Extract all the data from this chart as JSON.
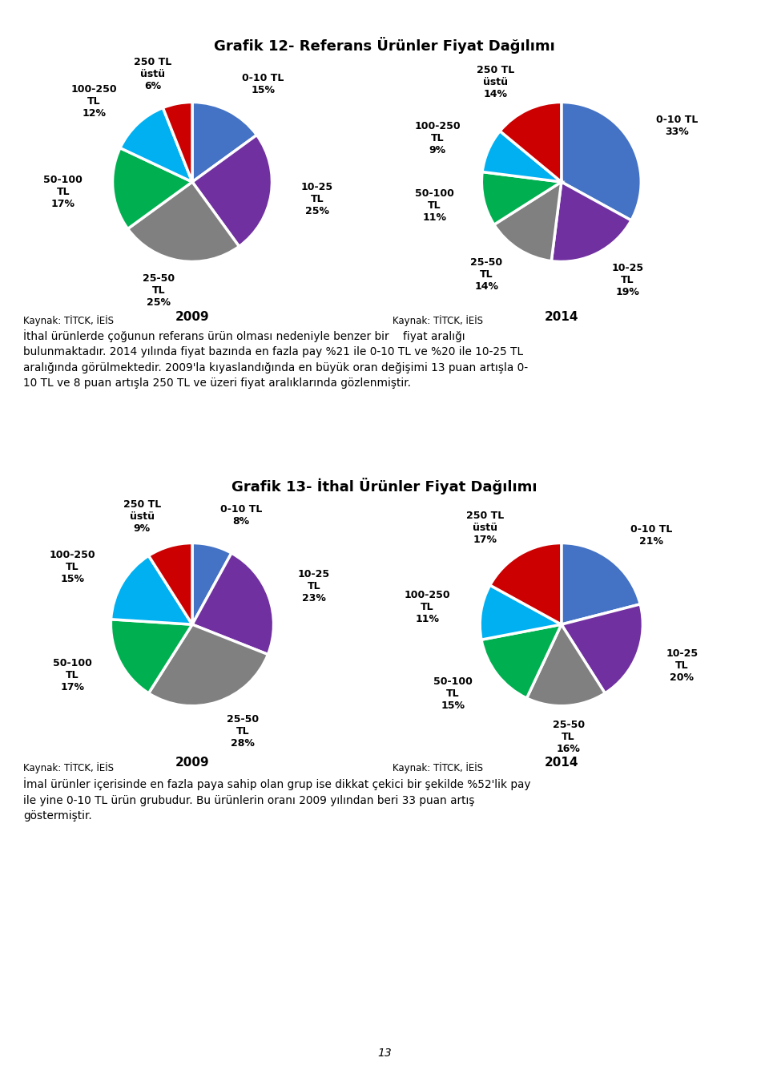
{
  "title1": "Grafik 12- Referans Ürünler Fiyat Dağılımı",
  "title2": "Grafik 13- İthal Ürünler Fiyat Dağılımı",
  "pie_colors": {
    "0-10 TL": "#4472c4",
    "10-25 TL": "#7030a0",
    "25-50 TL": "#808080",
    "50-100 TL": "#00b050",
    "100-250 TL": "#00b0f0",
    "250 TL ustu": "#cc0000"
  },
  "referans_2009": {
    "labels": [
      "0-10 TL",
      "10-25 TL",
      "25-50 TL",
      "50-100 TL",
      "100-250 TL",
      "250 TL ustu"
    ],
    "values": [
      15,
      25,
      25,
      17,
      12,
      6
    ],
    "label_texts": [
      "0-10 TL\n15%",
      "10-25\nTL\n25%",
      "25-50\nTL\n25%",
      "50-100\nTL\n17%",
      "100-250\nTL\n12%",
      "250 TL\nüstü\n6%"
    ],
    "year": "2009",
    "source": "Kaynak: TİTCK, İEİS"
  },
  "referans_2014": {
    "labels": [
      "0-10 TL",
      "10-25 TL",
      "25-50 TL",
      "50-100 TL",
      "100-250 TL",
      "250 TL ustu"
    ],
    "values": [
      33,
      19,
      14,
      11,
      9,
      14
    ],
    "label_texts": [
      "0-10 TL\n33%",
      "10-25\nTL\n19%",
      "25-50\nTL\n14%",
      "50-100\nTL\n11%",
      "100-250\nTL\n9%",
      "250 TL\nüstü\n14%"
    ],
    "year": "2014",
    "source": "Kaynak: TİTCK, İEİS"
  },
  "ithal_2009": {
    "labels": [
      "0-10 TL",
      "10-25 TL",
      "25-50 TL",
      "50-100 TL",
      "100-250 TL",
      "250 TL ustu"
    ],
    "values": [
      8,
      23,
      28,
      17,
      15,
      9
    ],
    "label_texts": [
      "0-10 TL\n8%",
      "10-25\nTL\n23%",
      "25-50\nTL\n28%",
      "50-100\nTL\n17%",
      "100-250\nTL\n15%",
      "250 TL\nüstü\n9%"
    ],
    "year": "2009",
    "source": "Kaynak: TİTCK, İEİS"
  },
  "ithal_2014": {
    "labels": [
      "0-10 TL",
      "10-25 TL",
      "25-50 TL",
      "50-100 TL",
      "100-250 TL",
      "250 TL ustu"
    ],
    "values": [
      21,
      20,
      16,
      15,
      11,
      17
    ],
    "label_texts": [
      "0-10 TL\n21%",
      "10-25\nTL\n20%",
      "25-50\nTL\n16%",
      "50-100\nTL\n15%",
      "100-250\nTL\n11%",
      "250 TL\nüstü\n17%"
    ],
    "year": "2014",
    "source": "Kaynak: TİTCK, İEİS"
  },
  "text_block1": "İthal ürünlerde çoğunun referans ürün olması nedeniyle benzer bir    fiyat aralığı bulunmaktadır. 2014 yılında fiyat bazında en fazla pay %21 ile 0-10 TL ve %20 ile 10-25 TL aralığında görülmektedir. 2009'la kıyaslandığında en büyük oran değişimi 13 puan artışla 0-10 TL ve 8 puan artışla 250 TL ve üzeri fiyat aralıklarında gözlenmiştir.",
  "text_block2": "İmal ürünler içerisinde en fazla paya sahip olan grup ise dikkat çekici bir şekilde %52'lik pay ile yine 0-10 TL ürün grubudur. Bu ürünlerin oranı 2009 yılından beri 33 puan artış göstermiştir.",
  "page_number": "13",
  "background_color": "#ffffff",
  "text_color": "#000000",
  "wedge_linewidth": 2.5,
  "wedge_linecolor": "#ffffff"
}
